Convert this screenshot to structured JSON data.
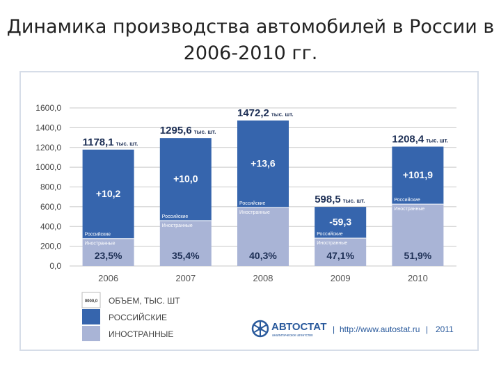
{
  "title": "Динамика производства автомобилей в России в 2006-2010 гг.",
  "colors": {
    "russian": "#3665ad",
    "foreign": "#a9b4d6",
    "total_text": "#1d2f55",
    "grid": "#c8c8c8",
    "frame": "#d6dde8",
    "brand": "#2a5a9c"
  },
  "chart_data": {
    "type": "bar",
    "stacked": true,
    "categories": [
      "2006",
      "2007",
      "2008",
      "2009",
      "2010"
    ],
    "ylim": [
      0,
      1600
    ],
    "y_ticks": [
      "0,0",
      "200,0",
      "400,0",
      "600,0",
      "800,0",
      "1000,0",
      "1200,0",
      "1400,0",
      "1600,0"
    ],
    "grid": true,
    "series": [
      {
        "name": "ИНОСТРАННЫЕ",
        "values": [
          276.8,
          458.6,
          593.2,
          281.9,
          626.2
        ],
        "segment_label": "Иностранные"
      },
      {
        "name": "РОССИЙСКИЕ",
        "values": [
          901.3,
          837.0,
          879.0,
          316.6,
          582.2
        ],
        "segment_label": "Российские"
      }
    ],
    "totals": [
      "1178,1",
      "1295,6",
      "1472,2",
      "598,5",
      "1208,4"
    ],
    "total_unit": "тыс. шт.",
    "total_values": [
      1178.1,
      1295.6,
      1472.2,
      598.5,
      1208.4
    ],
    "growth": [
      "+10,2",
      "+10,0",
      "+13,6",
      "-59,3",
      "+101,9"
    ],
    "foreign_share": [
      "23,5%",
      "35,4%",
      "40,3%",
      "47,1%",
      "51,9%"
    ],
    "legend": {
      "position": "bottom-left",
      "items": [
        {
          "key": "volume",
          "label": "ОБЪЕМ, ТЫС. ШТ",
          "swatch_text": "0000,0"
        },
        {
          "key": "russian",
          "label": "РОССИЙСКИЕ"
        },
        {
          "key": "foreign",
          "label": "ИНОСТРАННЫЕ"
        }
      ]
    }
  },
  "branding": {
    "name": "АВТОСТАТ",
    "tagline": "аналитическое агентство",
    "url": "http://www.autostat.ru",
    "year": "2011",
    "separator": "|"
  }
}
